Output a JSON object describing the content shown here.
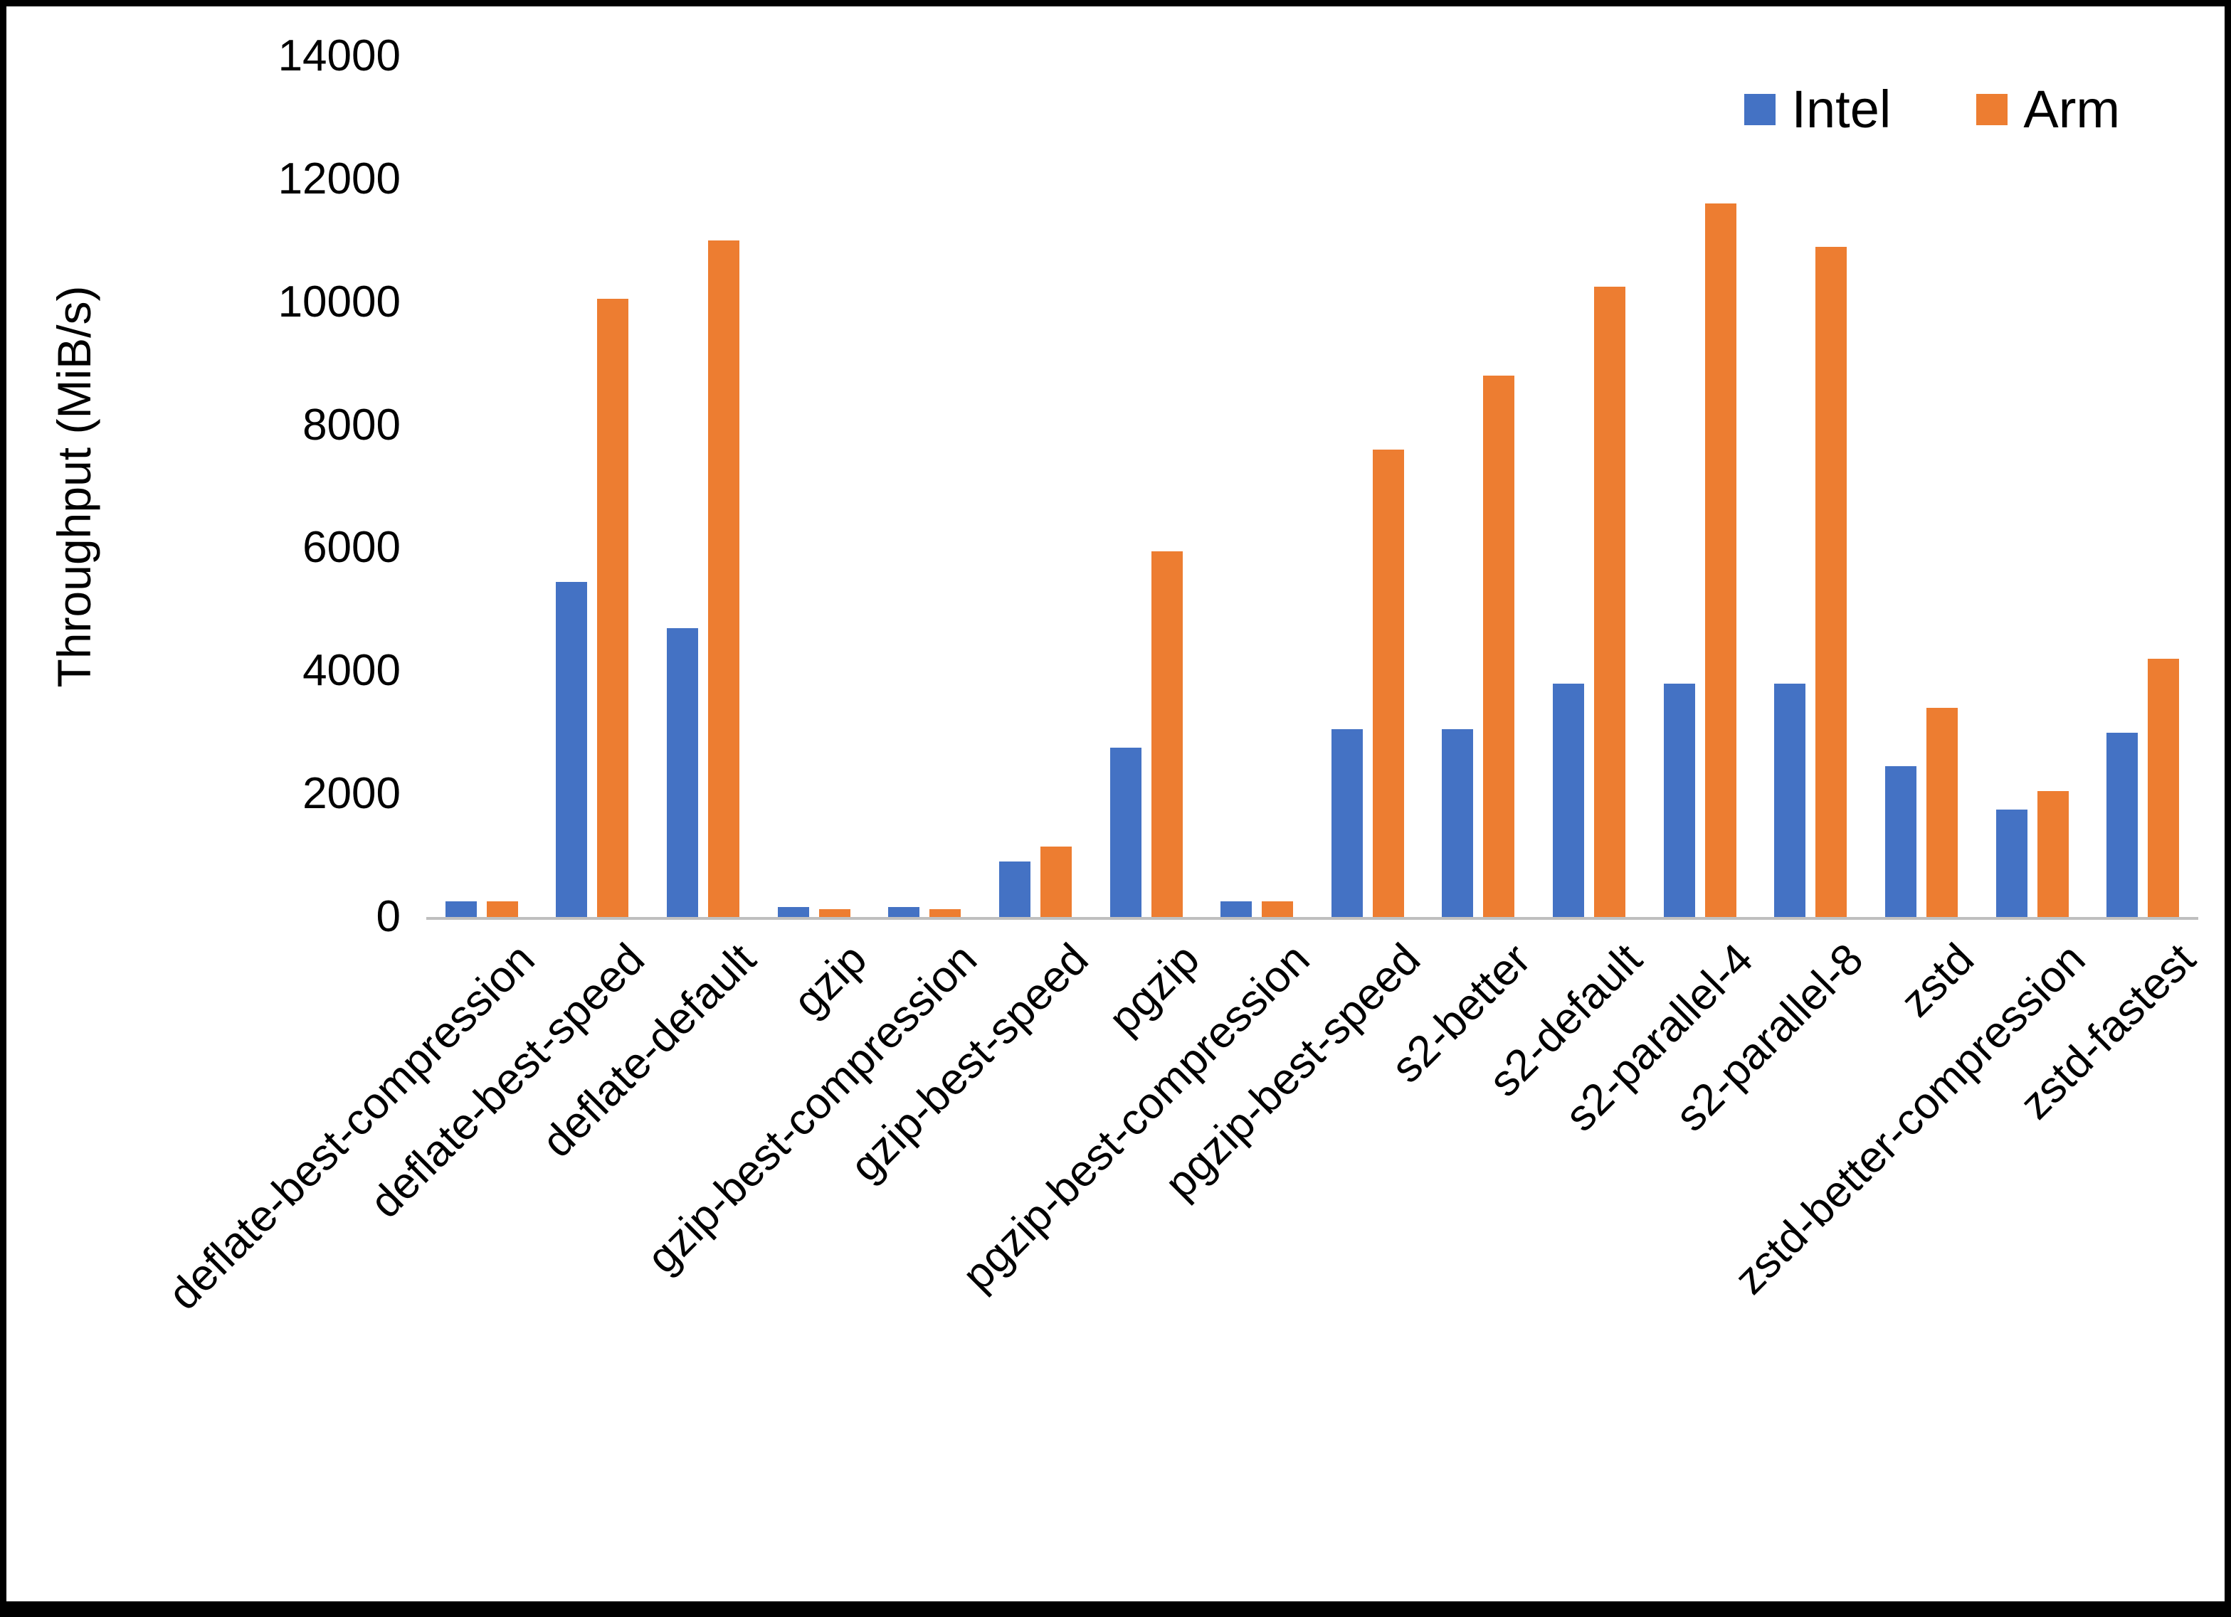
{
  "chart_data": {
    "type": "bar",
    "title": "",
    "xlabel": "",
    "ylabel": "Throughput (MiB/s)",
    "ylim": [
      0,
      14000
    ],
    "ytick_step": 2000,
    "grid": false,
    "legend_position": "top-right",
    "axis_line_color": "#bfbfbf",
    "categories": [
      "deflate-best-compression",
      "deflate-best-speed",
      "deflate-default",
      "gzip",
      "gzip-best-compression",
      "gzip-best-speed",
      "pgzip",
      "pgzip-best-compression",
      "pgzip-best-speed",
      "s2-better",
      "s2-default",
      "s2-parallel-4",
      "s2-parallel-8",
      "zstd",
      "zstd-better-compression",
      "zstd-fastest"
    ],
    "series": [
      {
        "name": "Intel",
        "color": "#4472C4",
        "values": [
          250,
          5450,
          4700,
          160,
          160,
          900,
          2750,
          250,
          3050,
          3050,
          3800,
          3800,
          3800,
          2450,
          1750,
          3000
        ]
      },
      {
        "name": "Arm",
        "color": "#ED7D31",
        "values": [
          250,
          10050,
          11000,
          130,
          130,
          1150,
          5950,
          260,
          7600,
          8800,
          10250,
          11600,
          10900,
          3400,
          2050,
          4200
        ]
      }
    ]
  }
}
